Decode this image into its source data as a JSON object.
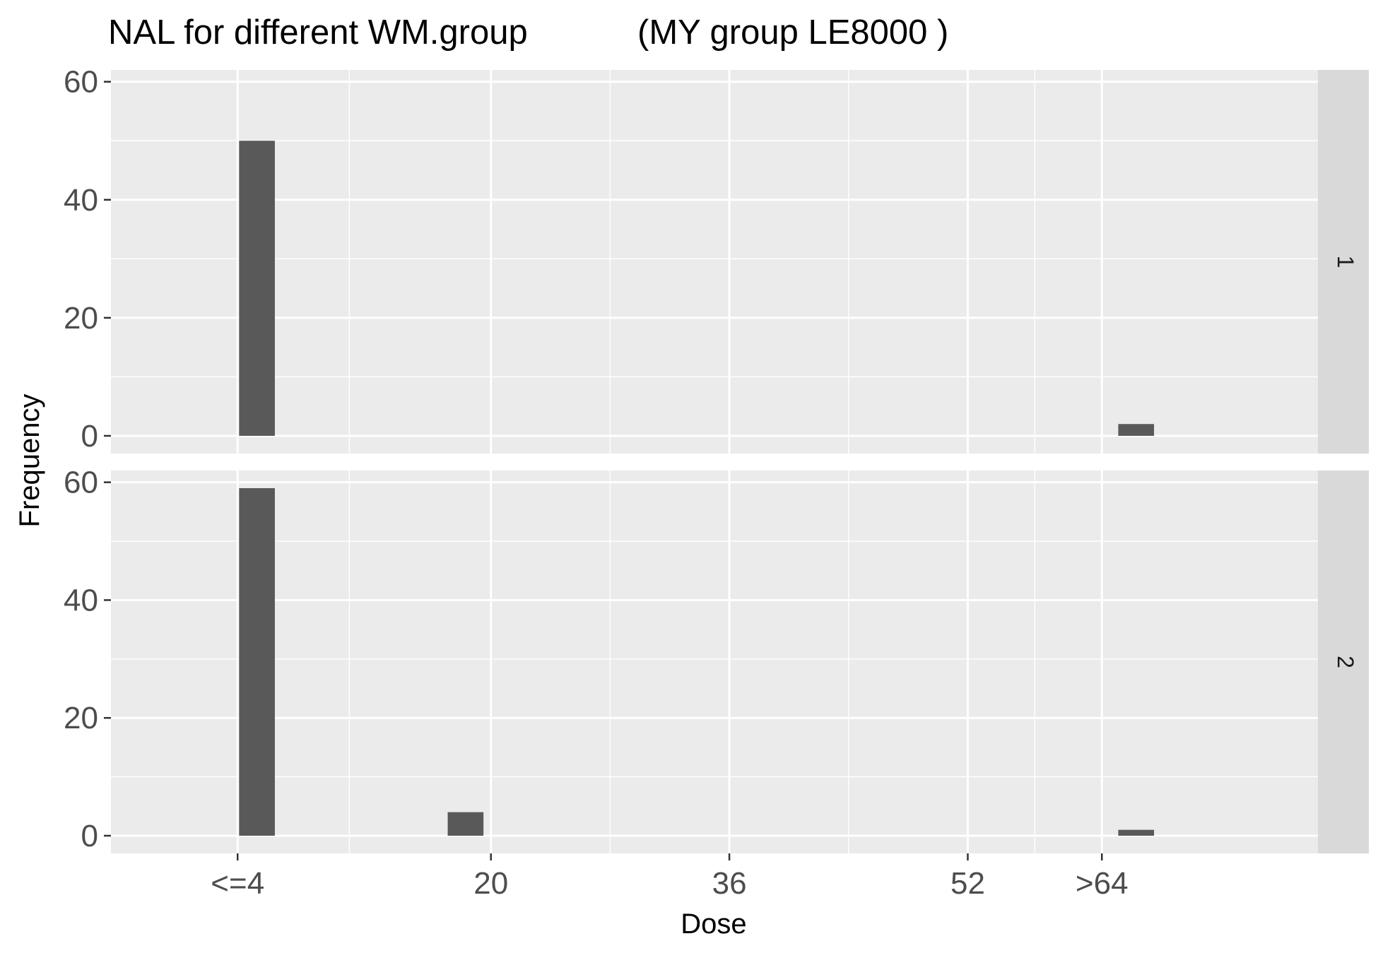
{
  "chart_data": {
    "type": "bar",
    "title": "NAL for different WM.group",
    "subtitle": "(MY group LE8000 )",
    "xlabel": "Dose",
    "ylabel": "Frequency",
    "xlim": [
      -5.5,
      75.5
    ],
    "ylim": [
      -3,
      62
    ],
    "x_tick_values": [
      3,
      20,
      36,
      52,
      61
    ],
    "x_tick_labels": [
      "<=4",
      "20",
      "36",
      "52",
      ">64"
    ],
    "x_minor_gridlines": [
      10.5,
      28,
      44,
      56.5
    ],
    "y_ticks": [
      0,
      20,
      40,
      60
    ],
    "y_minor_gridlines": [
      10,
      30,
      50
    ],
    "bar_width": 2.4,
    "panels": [
      {
        "strip_label": "1",
        "bars": [
          {
            "x": 4.3,
            "value": 50
          },
          {
            "x": 63.3,
            "value": 2
          }
        ]
      },
      {
        "strip_label": "2",
        "bars": [
          {
            "x": 4.3,
            "value": 59
          },
          {
            "x": 18.3,
            "value": 4
          },
          {
            "x": 63.3,
            "value": 1
          }
        ]
      }
    ],
    "colors": {
      "bar": "#595959",
      "panel_background": "#ebebeb",
      "grid": "#ffffff",
      "strip_background": "#d9d9d9",
      "tick": "#333333"
    }
  }
}
